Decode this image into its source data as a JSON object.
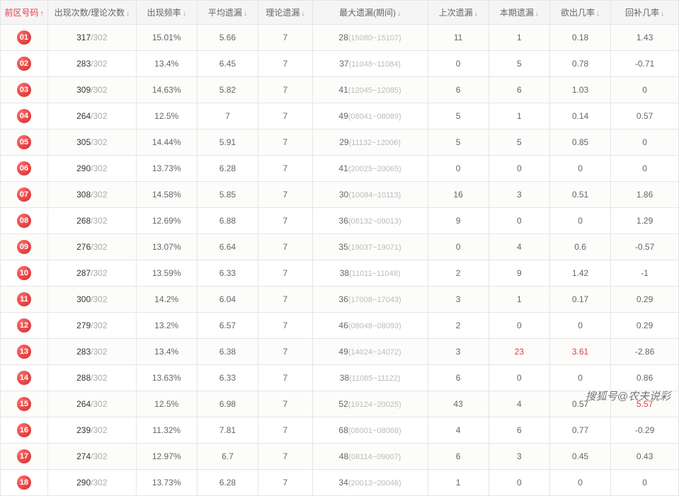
{
  "columns": [
    {
      "label": "前区号码",
      "key": "num",
      "active": true,
      "arrow": "up",
      "width": "7%"
    },
    {
      "label": "出现次数/理论次数",
      "key": "count",
      "arrow": "down",
      "width": "13%"
    },
    {
      "label": "出现频率",
      "key": "freq",
      "arrow": "down",
      "width": "9%"
    },
    {
      "label": "平均遗漏",
      "key": "avg",
      "arrow": "down",
      "width": "9%"
    },
    {
      "label": "理论遗漏",
      "key": "theory",
      "arrow": "down",
      "width": "8%"
    },
    {
      "label": "最大遗漏(期间)",
      "key": "max",
      "arrow": "down",
      "width": "17%"
    },
    {
      "label": "上次遗漏",
      "key": "prev",
      "arrow": "down",
      "width": "9%"
    },
    {
      "label": "本期遗漏",
      "key": "curr",
      "arrow": "down",
      "width": "9%"
    },
    {
      "label": "欲出几率",
      "key": "wish",
      "arrow": "down",
      "width": "9%"
    },
    {
      "label": "回补几率",
      "key": "recov",
      "arrow": "down",
      "width": "10%"
    }
  ],
  "rows": [
    {
      "num": "01",
      "count_a": "317",
      "count_b": "302",
      "freq": "15.01%",
      "avg": "5.66",
      "theory": "7",
      "max_n": "28",
      "max_r": "(15080~15107)",
      "prev": "11",
      "curr": "1",
      "wish": "0.18",
      "recov": "1.43"
    },
    {
      "num": "02",
      "count_a": "283",
      "count_b": "302",
      "freq": "13.4%",
      "avg": "6.45",
      "theory": "7",
      "max_n": "37",
      "max_r": "(11048~11084)",
      "prev": "0",
      "curr": "5",
      "wish": "0.78",
      "recov": "-0.71"
    },
    {
      "num": "03",
      "count_a": "309",
      "count_b": "302",
      "freq": "14.63%",
      "avg": "5.82",
      "theory": "7",
      "max_n": "41",
      "max_r": "(12045~12085)",
      "prev": "6",
      "curr": "6",
      "wish": "1.03",
      "recov": "0"
    },
    {
      "num": "04",
      "count_a": "264",
      "count_b": "302",
      "freq": "12.5%",
      "avg": "7",
      "theory": "7",
      "max_n": "49",
      "max_r": "(08041~08089)",
      "prev": "5",
      "curr": "1",
      "wish": "0.14",
      "recov": "0.57"
    },
    {
      "num": "05",
      "count_a": "305",
      "count_b": "302",
      "freq": "14.44%",
      "avg": "5.91",
      "theory": "7",
      "max_n": "29",
      "max_r": "(11132~12006)",
      "prev": "5",
      "curr": "5",
      "wish": "0.85",
      "recov": "0"
    },
    {
      "num": "06",
      "count_a": "290",
      "count_b": "302",
      "freq": "13.73%",
      "avg": "6.28",
      "theory": "7",
      "max_n": "41",
      "max_r": "(20025~20065)",
      "prev": "0",
      "curr": "0",
      "wish": "0",
      "recov": "0"
    },
    {
      "num": "07",
      "count_a": "308",
      "count_b": "302",
      "freq": "14.58%",
      "avg": "5.85",
      "theory": "7",
      "max_n": "30",
      "max_r": "(10084~10113)",
      "prev": "16",
      "curr": "3",
      "wish": "0.51",
      "recov": "1.86"
    },
    {
      "num": "08",
      "count_a": "268",
      "count_b": "302",
      "freq": "12.69%",
      "avg": "6.88",
      "theory": "7",
      "max_n": "36",
      "max_r": "(08132~09013)",
      "prev": "9",
      "curr": "0",
      "wish": "0",
      "recov": "1.29"
    },
    {
      "num": "09",
      "count_a": "276",
      "count_b": "302",
      "freq": "13.07%",
      "avg": "6.64",
      "theory": "7",
      "max_n": "35",
      "max_r": "(19037~19071)",
      "prev": "0",
      "curr": "4",
      "wish": "0.6",
      "recov": "-0.57"
    },
    {
      "num": "10",
      "count_a": "287",
      "count_b": "302",
      "freq": "13.59%",
      "avg": "6.33",
      "theory": "7",
      "max_n": "38",
      "max_r": "(11011~11048)",
      "prev": "2",
      "curr": "9",
      "wish": "1.42",
      "recov": "-1"
    },
    {
      "num": "11",
      "count_a": "300",
      "count_b": "302",
      "freq": "14.2%",
      "avg": "6.04",
      "theory": "7",
      "max_n": "36",
      "max_r": "(17008~17043)",
      "prev": "3",
      "curr": "1",
      "wish": "0.17",
      "recov": "0.29"
    },
    {
      "num": "12",
      "count_a": "279",
      "count_b": "302",
      "freq": "13.2%",
      "avg": "6.57",
      "theory": "7",
      "max_n": "46",
      "max_r": "(08048~08093)",
      "prev": "2",
      "curr": "0",
      "wish": "0",
      "recov": "0.29"
    },
    {
      "num": "13",
      "count_a": "283",
      "count_b": "302",
      "freq": "13.4%",
      "avg": "6.38",
      "theory": "7",
      "max_n": "49",
      "max_r": "(14024~14072)",
      "prev": "3",
      "curr": "23",
      "curr_hl": true,
      "wish": "3.61",
      "wish_hl": true,
      "recov": "-2.86"
    },
    {
      "num": "14",
      "count_a": "288",
      "count_b": "302",
      "freq": "13.63%",
      "avg": "6.33",
      "theory": "7",
      "max_n": "38",
      "max_r": "(11085~11122)",
      "prev": "6",
      "curr": "0",
      "wish": "0",
      "recov": "0.86"
    },
    {
      "num": "15",
      "count_a": "264",
      "count_b": "302",
      "freq": "12.5%",
      "avg": "6.98",
      "theory": "7",
      "max_n": "52",
      "max_r": "(19124~20025)",
      "prev": "43",
      "curr": "4",
      "wish": "0.57",
      "recov": "5.57",
      "recov_hl": true
    },
    {
      "num": "16",
      "count_a": "239",
      "count_b": "302",
      "freq": "11.32%",
      "avg": "7.81",
      "theory": "7",
      "max_n": "68",
      "max_r": "(08001~08068)",
      "prev": "4",
      "curr": "6",
      "wish": "0.77",
      "recov": "-0.29"
    },
    {
      "num": "17",
      "count_a": "274",
      "count_b": "302",
      "freq": "12.97%",
      "avg": "6.7",
      "theory": "7",
      "max_n": "48",
      "max_r": "(08114~09007)",
      "prev": "6",
      "curr": "3",
      "wish": "0.45",
      "recov": "0.43"
    },
    {
      "num": "18",
      "count_a": "290",
      "count_b": "302",
      "freq": "13.73%",
      "avg": "6.28",
      "theory": "7",
      "max_n": "34",
      "max_r": "(20013~20046)",
      "prev": "1",
      "curr": "0",
      "wish": "0",
      "recov": "0"
    }
  ],
  "watermark": "搜狐号@农夫说彩"
}
